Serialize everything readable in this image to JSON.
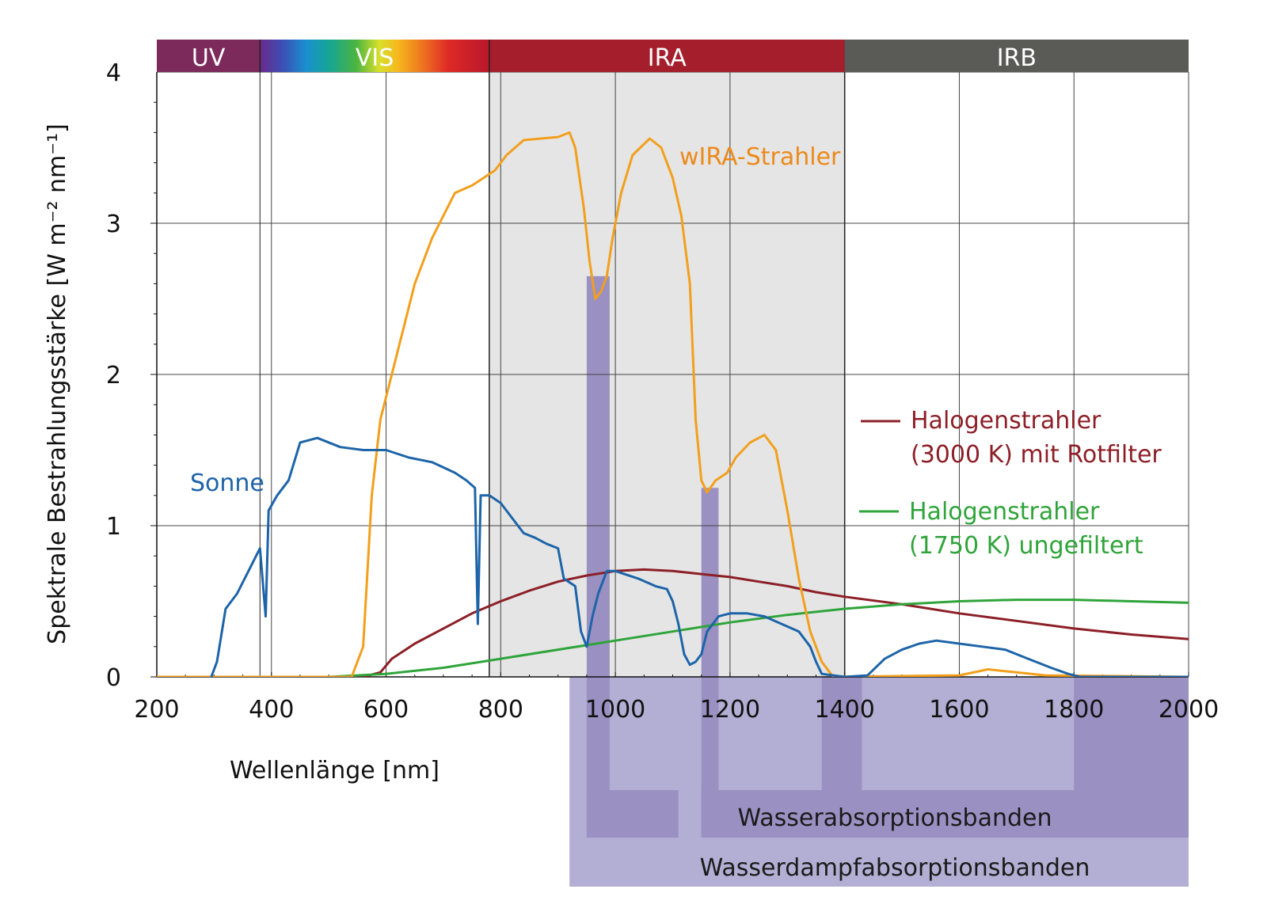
{
  "chart_data": {
    "type": "line",
    "xlabel": "Wellenlänge [nm]",
    "ylabel": "Spektrale Bestrahlungsstärke [W m⁻² nm⁻¹]",
    "xlim": [
      200,
      2000
    ],
    "ylim": [
      0,
      4
    ],
    "x_ticks": [
      "200",
      "400",
      "600",
      "800",
      "1000",
      "1200",
      "1400",
      "1600",
      "1800",
      "2000"
    ],
    "y_ticks": [
      "0",
      "1",
      "2",
      "3",
      "4"
    ],
    "regions": [
      {
        "label": "UV",
        "from": 200,
        "to": 380,
        "color": "#7c2a5c"
      },
      {
        "label": "VIS",
        "from": 380,
        "to": 780,
        "color": "spectrum"
      },
      {
        "label": "IRA",
        "from": 780,
        "to": 1400,
        "color": "#a41e2b"
      },
      {
        "label": "IRB",
        "from": 1400,
        "to": 2000,
        "color": "#5a5a57"
      }
    ],
    "series": [
      {
        "name": "Sonne",
        "color": "#1d64a8",
        "points": [
          [
            295,
            0
          ],
          [
            305,
            0.1
          ],
          [
            320,
            0.45
          ],
          [
            340,
            0.55
          ],
          [
            360,
            0.7
          ],
          [
            380,
            0.85
          ],
          [
            390,
            0.4
          ],
          [
            395,
            1.1
          ],
          [
            410,
            1.2
          ],
          [
            430,
            1.3
          ],
          [
            450,
            1.55
          ],
          [
            480,
            1.58
          ],
          [
            520,
            1.52
          ],
          [
            560,
            1.5
          ],
          [
            600,
            1.5
          ],
          [
            640,
            1.45
          ],
          [
            680,
            1.42
          ],
          [
            720,
            1.35
          ],
          [
            740,
            1.3
          ],
          [
            755,
            1.25
          ],
          [
            760,
            0.35
          ],
          [
            765,
            1.2
          ],
          [
            780,
            1.2
          ],
          [
            800,
            1.15
          ],
          [
            820,
            1.05
          ],
          [
            840,
            0.95
          ],
          [
            860,
            0.92
          ],
          [
            880,
            0.88
          ],
          [
            900,
            0.85
          ],
          [
            910,
            0.65
          ],
          [
            930,
            0.6
          ],
          [
            940,
            0.3
          ],
          [
            950,
            0.2
          ],
          [
            960,
            0.4
          ],
          [
            970,
            0.55
          ],
          [
            985,
            0.7
          ],
          [
            1000,
            0.7
          ],
          [
            1040,
            0.65
          ],
          [
            1070,
            0.6
          ],
          [
            1090,
            0.58
          ],
          [
            1100,
            0.5
          ],
          [
            1110,
            0.35
          ],
          [
            1120,
            0.15
          ],
          [
            1130,
            0.08
          ],
          [
            1140,
            0.1
          ],
          [
            1150,
            0.15
          ],
          [
            1160,
            0.3
          ],
          [
            1180,
            0.4
          ],
          [
            1200,
            0.42
          ],
          [
            1230,
            0.42
          ],
          [
            1260,
            0.4
          ],
          [
            1290,
            0.35
          ],
          [
            1320,
            0.3
          ],
          [
            1340,
            0.2
          ],
          [
            1350,
            0.1
          ],
          [
            1360,
            0.02
          ],
          [
            1400,
            0.0
          ],
          [
            1440,
            0.01
          ],
          [
            1470,
            0.12
          ],
          [
            1500,
            0.18
          ],
          [
            1530,
            0.22
          ],
          [
            1560,
            0.24
          ],
          [
            1600,
            0.22
          ],
          [
            1640,
            0.2
          ],
          [
            1680,
            0.18
          ],
          [
            1720,
            0.12
          ],
          [
            1760,
            0.06
          ],
          [
            1790,
            0.02
          ],
          [
            1810,
            0.0
          ],
          [
            2000,
            0.0
          ]
        ]
      },
      {
        "name": "wIRA-Strahler",
        "color": "#f29f1c",
        "points": [
          [
            200,
            0
          ],
          [
            540,
            0
          ],
          [
            560,
            0.2
          ],
          [
            575,
            1.2
          ],
          [
            590,
            1.7
          ],
          [
            620,
            2.15
          ],
          [
            650,
            2.6
          ],
          [
            680,
            2.9
          ],
          [
            700,
            3.05
          ],
          [
            720,
            3.2
          ],
          [
            750,
            3.25
          ],
          [
            770,
            3.3
          ],
          [
            790,
            3.35
          ],
          [
            810,
            3.45
          ],
          [
            840,
            3.55
          ],
          [
            870,
            3.56
          ],
          [
            900,
            3.57
          ],
          [
            920,
            3.6
          ],
          [
            930,
            3.5
          ],
          [
            945,
            3.1
          ],
          [
            955,
            2.75
          ],
          [
            965,
            2.5
          ],
          [
            975,
            2.55
          ],
          [
            985,
            2.65
          ],
          [
            995,
            2.9
          ],
          [
            1010,
            3.2
          ],
          [
            1030,
            3.45
          ],
          [
            1060,
            3.56
          ],
          [
            1080,
            3.5
          ],
          [
            1100,
            3.3
          ],
          [
            1115,
            3.05
          ],
          [
            1130,
            2.6
          ],
          [
            1140,
            1.7
          ],
          [
            1150,
            1.3
          ],
          [
            1160,
            1.22
          ],
          [
            1175,
            1.3
          ],
          [
            1195,
            1.35
          ],
          [
            1210,
            1.45
          ],
          [
            1235,
            1.55
          ],
          [
            1260,
            1.6
          ],
          [
            1280,
            1.5
          ],
          [
            1300,
            1.1
          ],
          [
            1320,
            0.65
          ],
          [
            1340,
            0.3
          ],
          [
            1360,
            0.1
          ],
          [
            1380,
            0.0
          ],
          [
            1600,
            0.01
          ],
          [
            1650,
            0.05
          ],
          [
            1700,
            0.03
          ],
          [
            1750,
            0.01
          ],
          [
            2000,
            0.0
          ]
        ]
      },
      {
        "name": "Halogenstrahler (3000 K) mit Rotfilter",
        "color": "#8c1f27",
        "points": [
          [
            380,
            0
          ],
          [
            560,
            0.0
          ],
          [
            590,
            0.03
          ],
          [
            610,
            0.12
          ],
          [
            650,
            0.22
          ],
          [
            700,
            0.32
          ],
          [
            750,
            0.42
          ],
          [
            800,
            0.5
          ],
          [
            850,
            0.57
          ],
          [
            900,
            0.63
          ],
          [
            950,
            0.67
          ],
          [
            1000,
            0.7
          ],
          [
            1050,
            0.71
          ],
          [
            1100,
            0.7
          ],
          [
            1150,
            0.68
          ],
          [
            1200,
            0.66
          ],
          [
            1250,
            0.63
          ],
          [
            1300,
            0.6
          ],
          [
            1350,
            0.56
          ],
          [
            1400,
            0.53
          ],
          [
            1500,
            0.48
          ],
          [
            1600,
            0.42
          ],
          [
            1700,
            0.37
          ],
          [
            1800,
            0.32
          ],
          [
            1900,
            0.28
          ],
          [
            2000,
            0.25
          ]
        ]
      },
      {
        "name": "Halogenstrahler (1750 K) ungefiltert",
        "color": "#2fa43a",
        "points": [
          [
            295,
            0
          ],
          [
            500,
            0.0
          ],
          [
            600,
            0.02
          ],
          [
            700,
            0.06
          ],
          [
            800,
            0.12
          ],
          [
            900,
            0.18
          ],
          [
            1000,
            0.24
          ],
          [
            1100,
            0.3
          ],
          [
            1200,
            0.36
          ],
          [
            1300,
            0.41
          ],
          [
            1400,
            0.45
          ],
          [
            1500,
            0.48
          ],
          [
            1600,
            0.5
          ],
          [
            1700,
            0.51
          ],
          [
            1800,
            0.51
          ],
          [
            1900,
            0.5
          ],
          [
            2000,
            0.49
          ]
        ]
      }
    ],
    "labels": {
      "sonne": "Sonne",
      "wira": "wIRA-Strahler",
      "halogen_3000_line1": "Halogenstrahler",
      "halogen_3000_line2": "(3000 K) mit Rotfilter",
      "halogen_1750_line1": "Halogenstrahler",
      "halogen_1750_line2": "(1750 K) ungefiltert"
    },
    "absorption_bands": {
      "wasser_label": "Wasserabsorptionsbanden",
      "wasser_bands": [
        [
          950,
          990
        ],
        [
          1150,
          1180
        ],
        [
          1360,
          1430
        ],
        [
          1800,
          2000
        ]
      ],
      "wasserdampf_label": "Wasserdampfabsorptionsbanden",
      "wasserdampf_range": [
        920,
        2000
      ]
    },
    "shaded_region": [
      780,
      1400
    ]
  }
}
